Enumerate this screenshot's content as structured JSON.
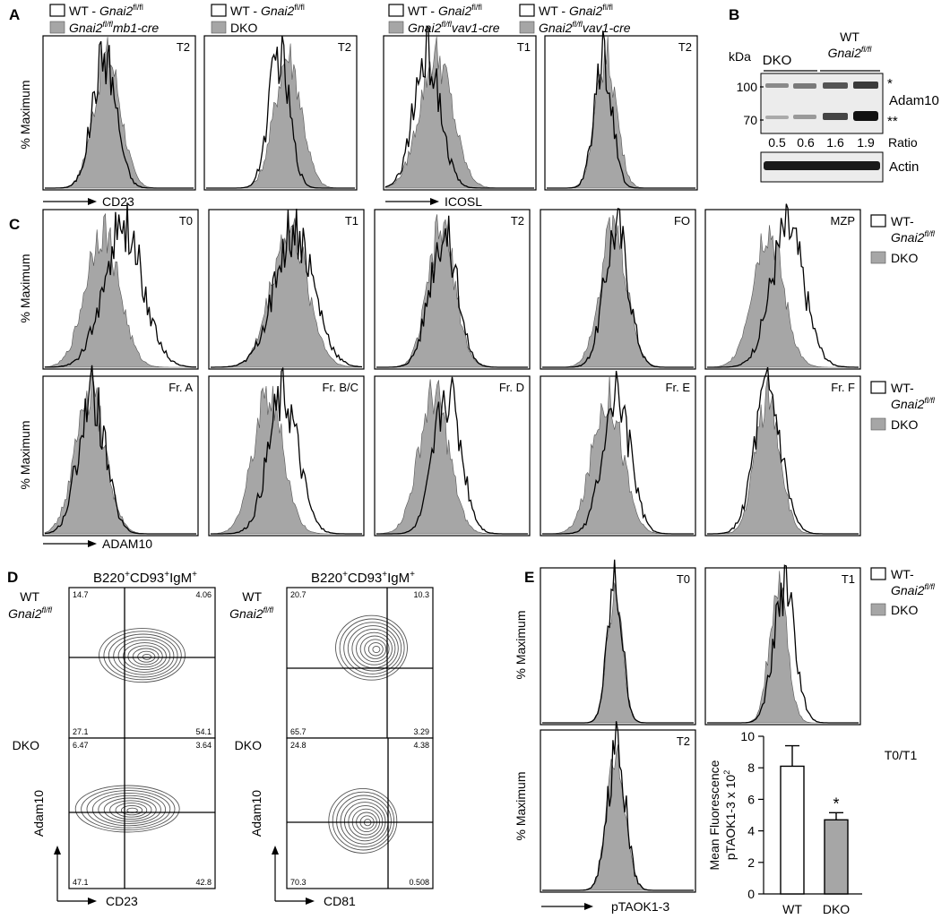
{
  "panel_letters": [
    "A",
    "B",
    "C",
    "D",
    "E"
  ],
  "panelA": {
    "y_label": "% Maximum",
    "x_labels": [
      "CD23",
      "ICOSL"
    ],
    "legends": [
      {
        "open_base": "WT - ",
        "open_gene": "Gnai2",
        "open_sup": "fl/fl",
        "filled_gene": "Gnai2",
        "filled_sup": "fl/fl",
        "filled_suffix": "mb1-cre"
      },
      {
        "open_base": "WT - ",
        "open_gene": "Gnai2",
        "open_sup": "fl/fl",
        "filled_plain": "DKO"
      },
      {
        "open_base": "WT - ",
        "open_gene": "Gnai2",
        "open_sup": "fl/fl",
        "filled_gene": "Gnai2",
        "filled_sup": "fl/fl",
        "filled_suffix": "vav1-cre"
      },
      {
        "open_base": "WT - ",
        "open_gene": "Gnai2",
        "open_sup": "fl/fl",
        "filled_gene": "Gnai2",
        "filled_sup": "fl/fl",
        "filled_suffix": "vav1-cre"
      }
    ],
    "plot_titles": [
      "T2",
      "T2",
      "T1",
      "T2"
    ]
  },
  "panelB": {
    "kda_label": "kDa",
    "markers": [
      "100",
      "70"
    ],
    "group_dko": "DKO",
    "group_wt": "WT",
    "group_wt_gene": "Gnai2",
    "group_wt_sup": "fl/fl",
    "band_labels": [
      "*",
      "Adam10",
      "**"
    ],
    "ratios": [
      "0.5",
      "0.6",
      "1.6",
      "1.9"
    ],
    "ratio_label": "Ratio",
    "actin_label": "Actin"
  },
  "panelC": {
    "y_label": "% Maximum",
    "x_label": "ADAM10",
    "row1_titles": [
      "T0",
      "T1",
      "T2",
      "FO",
      "MZP"
    ],
    "row2_titles": [
      "Fr. A",
      "Fr. B/C",
      "Fr. D",
      "Fr. E",
      "Fr. F"
    ],
    "legend": {
      "open_label": "WT-",
      "open_gene": "Gnai2",
      "open_sup": "fl/fl",
      "filled_label": "DKO"
    }
  },
  "panelD": {
    "gate_base": "B220",
    "gate_parts": [
      "+",
      "CD93",
      "+",
      "IgM",
      "+"
    ],
    "row_labels": {
      "wt": "WT",
      "wt_gene": "Gnai2",
      "wt_sup": "fl/fl",
      "dko": "DKO"
    },
    "y_label": "Adam10",
    "x_labels": [
      "CD23",
      "CD81"
    ],
    "quadrants": [
      [
        "14.7",
        "4.06",
        "27.1",
        "54.1"
      ],
      [
        "20.7",
        "10.3",
        "65.7",
        "3.29"
      ],
      [
        "6.47",
        "3.64",
        "47.1",
        "42.8"
      ],
      [
        "24.8",
        "4.38",
        "70.3",
        "0.508"
      ]
    ]
  },
  "panelE": {
    "y_label": "% Maximum",
    "x_label": "pTAOK1-3",
    "plot_titles": [
      "T0",
      "T1",
      "T2"
    ],
    "legend": {
      "open_label": "WT-",
      "open_gene": "Gnai2",
      "open_sup": "fl/fl",
      "filled_label": "DKO"
    },
    "bar_title": "T0/T1",
    "bar_ylabel_1": "Mean Fluorescence",
    "bar_ylabel_2": "pTAOK1-3 x 10",
    "bar_ylabel_sup": "2",
    "significance": "*"
  },
  "chart_data": {
    "type": "bar",
    "title": "T0/T1",
    "categories": [
      "WT",
      "DKO"
    ],
    "values": [
      8.1,
      4.7
    ],
    "errors": [
      1.3,
      0.45
    ],
    "ylabel": "Mean Fluorescence pTAOK1-3 x 10^2",
    "ylim": [
      0,
      10
    ],
    "yticks": [
      0,
      2,
      4,
      6,
      8,
      10
    ],
    "colors": [
      "#ffffff",
      "#a6a6a6"
    ]
  }
}
